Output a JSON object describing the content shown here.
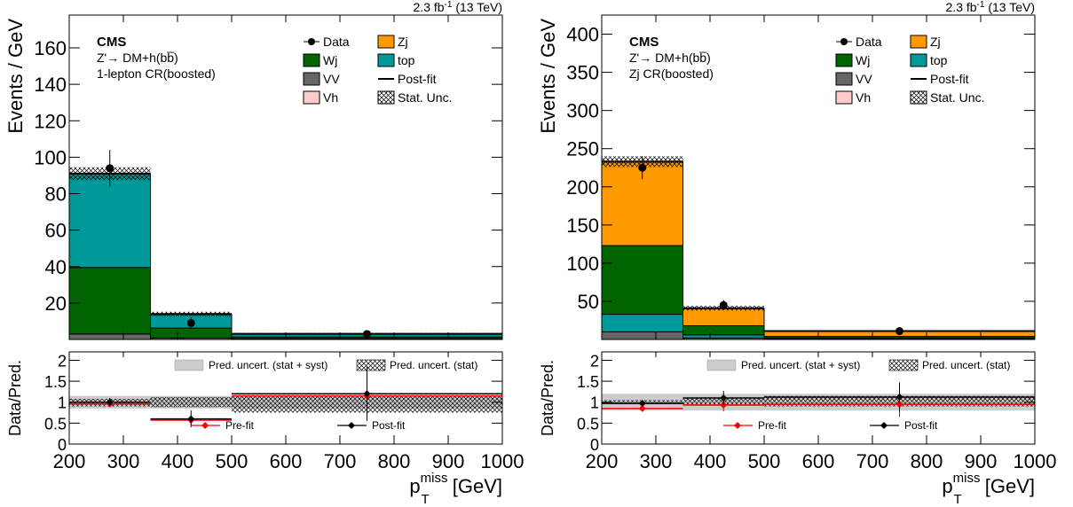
{
  "chart_data": [
    {
      "type": "bar",
      "stacked": true,
      "lumi": "2.3 fb",
      "lumi_sup": "-1",
      "energy": " (13 TeV)",
      "experiment": "CMS",
      "process_line": "Z'→ DM+h(bb̅)",
      "region": "1-lepton CR(boosted)",
      "ylabel": "Events / GeV",
      "xlabel_main": "p",
      "xlabel_sup": "miss",
      "xlabel_sub": "T",
      "xlabel_unit": " [GeV]",
      "ratio_ylabel": "Data/Pred.",
      "bins": [
        [
          200,
          350
        ],
        [
          350,
          500
        ],
        [
          500,
          1000
        ]
      ],
      "xlim": [
        200,
        1000
      ],
      "ylim": [
        0,
        178
      ],
      "yticks": [
        20,
        40,
        60,
        80,
        100,
        120,
        140,
        160
      ],
      "xticks": [
        200,
        300,
        400,
        500,
        600,
        700,
        800,
        900,
        1000
      ],
      "series": [
        {
          "name": "VV",
          "color": "#666666",
          "values": [
            3,
            0.8,
            0.5
          ]
        },
        {
          "name": "Wj",
          "color": "#006400",
          "values": [
            36.5,
            5.5,
            0.9
          ]
        },
        {
          "name": "top",
          "color": "#009999",
          "values": [
            51.5,
            7.5,
            1.5
          ]
        },
        {
          "name": "Zj",
          "color": "#ff9900",
          "values": [
            0,
            0,
            0
          ]
        },
        {
          "name": "Vh",
          "color": "#ffcccc",
          "values": [
            0,
            0,
            0
          ]
        }
      ],
      "postfit_total": [
        91,
        14,
        3.1
      ],
      "stat_unc": [
        3.5,
        1.2,
        0.5
      ],
      "data": {
        "x": [
          275,
          425,
          750
        ],
        "y": [
          94,
          9,
          3
        ],
        "err": [
          10,
          3.2,
          1.1
        ]
      },
      "legend": {
        "data": "Data",
        "zj": "Zj",
        "wj": "Wj",
        "top": "top",
        "vv": "VV",
        "postfit": "Post-fit",
        "vh": "Vh",
        "stat": "Stat. Unc."
      },
      "ratio": {
        "ylim": [
          0,
          2.2
        ],
        "yticks": [
          "0",
          "0.5",
          "1",
          "1.5",
          "2"
        ],
        "yticks_values": [
          0,
          0.5,
          1,
          1.5,
          2
        ],
        "syst_band": [
          [
            0.85,
            1.15
          ],
          [
            0.85,
            1.15
          ],
          [
            0.85,
            1.15
          ]
        ],
        "stat_band": [
          [
            0.9,
            1.08
          ],
          [
            0.88,
            1.12
          ],
          [
            0.75,
            1.17
          ]
        ],
        "prefit": {
          "y": [
            0.96,
            0.57,
            1.15
          ],
          "err": [
            0.07,
            0.12,
            0.6
          ]
        },
        "postfit": {
          "y": [
            1.0,
            0.6,
            1.2
          ],
          "err": [
            0.1,
            0.2,
            0.65
          ]
        },
        "legend_syst": "Pred. uncert. (stat + syst)",
        "legend_stat": "Pred. uncert. (stat)",
        "legend_prefit": "Pre-fit",
        "legend_postfit": "Post-fit"
      }
    },
    {
      "type": "bar",
      "stacked": true,
      "lumi": "2.3 fb",
      "lumi_sup": "-1",
      "energy": " (13 TeV)",
      "experiment": "CMS",
      "process_line": "Z'→ DM+h(bb̅)",
      "region": "Zj CR(boosted)",
      "ylabel": "Events / GeV",
      "xlabel_main": "p",
      "xlabel_sup": "miss",
      "xlabel_sub": "T",
      "xlabel_unit": " [GeV]",
      "ratio_ylabel": "Data/Pred.",
      "bins": [
        [
          200,
          350
        ],
        [
          350,
          500
        ],
        [
          500,
          1000
        ]
      ],
      "xlim": [
        200,
        1000
      ],
      "ylim": [
        0,
        425
      ],
      "yticks": [
        50,
        100,
        150,
        200,
        250,
        300,
        350,
        400
      ],
      "xticks": [
        200,
        300,
        400,
        500,
        600,
        700,
        800,
        900,
        1000
      ],
      "series": [
        {
          "name": "VV",
          "color": "#666666",
          "values": [
            10,
            2,
            1
          ]
        },
        {
          "name": "top",
          "color": "#009999",
          "values": [
            23,
            4,
            1
          ]
        },
        {
          "name": "Wj",
          "color": "#006400",
          "values": [
            90,
            12,
            2
          ]
        },
        {
          "name": "Zj",
          "color": "#ff9900",
          "values": [
            110,
            23,
            7
          ]
        },
        {
          "name": "Vh",
          "color": "#ffcccc",
          "values": [
            0,
            0,
            0
          ]
        }
      ],
      "postfit_total": [
        233,
        41,
        11
      ],
      "stat_unc": [
        7,
        3,
        1
      ],
      "data": {
        "x": [
          275,
          425,
          750
        ],
        "y": [
          225,
          45,
          11
        ],
        "err": [
          15,
          6.7,
          3.3
        ]
      },
      "legend": {
        "data": "Data",
        "zj": "Zj",
        "wj": "Wj",
        "top": "top",
        "vv": "VV",
        "postfit": "Post-fit",
        "vh": "Vh",
        "stat": "Stat. Unc."
      },
      "ratio": {
        "ylim": [
          0,
          2.2
        ],
        "yticks": [
          "0",
          "0.5",
          "1",
          "1.5",
          "2"
        ],
        "yticks_values": [
          0,
          0.5,
          1,
          1.5,
          2
        ],
        "syst_band": [
          [
            0.8,
            1.2
          ],
          [
            0.8,
            1.2
          ],
          [
            0.8,
            1.2
          ]
        ],
        "stat_band": [
          [
            0.95,
            1.05
          ],
          [
            0.92,
            1.1
          ],
          [
            0.9,
            1.15
          ]
        ],
        "prefit": {
          "y": [
            0.85,
            0.93,
            0.95
          ],
          "err": [
            0.06,
            0.15,
            0.3
          ]
        },
        "postfit": {
          "y": [
            0.97,
            1.1,
            1.12
          ],
          "err": [
            0.07,
            0.17,
            0.35
          ]
        },
        "legend_syst": "Pred. uncert. (stat + syst)",
        "legend_stat": "Pred. uncert. (stat)",
        "legend_prefit": "Pre-fit",
        "legend_postfit": "Post-fit"
      }
    }
  ]
}
